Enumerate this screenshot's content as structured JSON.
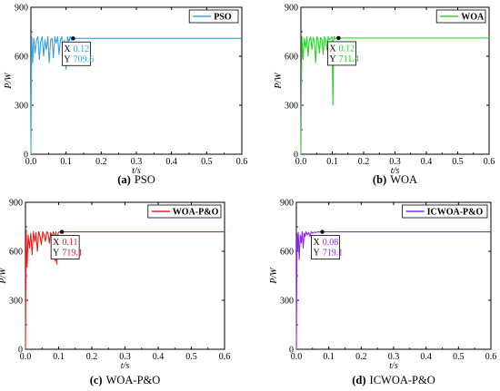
{
  "chart_data": [
    {
      "type": "line",
      "caption_letter": "(a)",
      "caption_text": "PSO",
      "legend": "PSO",
      "color": "#3aa0e0",
      "xlabel": "t/s",
      "ylabel": "P/W",
      "xlim": [
        0,
        0.6
      ],
      "ylim": [
        0,
        900
      ],
      "xticks": [
        "0.0",
        "0.1",
        "0.2",
        "0.3",
        "0.4",
        "0.5",
        "0.6"
      ],
      "yticks": [
        "0",
        "300",
        "600",
        "900"
      ],
      "datatip": {
        "x_label": "X",
        "x_value": "0.12",
        "y_label": "Y",
        "y_value": "709.6",
        "x": 0.12,
        "y": 709.6
      },
      "series": [
        {
          "x": [
            0,
            0.002,
            0.005,
            0.008,
            0.012,
            0.016,
            0.02,
            0.024,
            0.028,
            0.032,
            0.036,
            0.04,
            0.044,
            0.048,
            0.052,
            0.056,
            0.06,
            0.064,
            0.068,
            0.072,
            0.076,
            0.08,
            0.084,
            0.088,
            0.092,
            0.096,
            0.1,
            0.104,
            0.108,
            0.112,
            0.116,
            0.12,
            0.6
          ],
          "y": [
            0,
            720,
            560,
            710,
            620,
            700,
            720,
            580,
            690,
            720,
            600,
            700,
            640,
            720,
            560,
            700,
            710,
            590,
            720,
            680,
            720,
            610,
            700,
            720,
            560,
            700,
            520,
            720,
            690,
            720,
            700,
            709.6,
            709.6
          ]
        }
      ]
    },
    {
      "type": "line",
      "caption_letter": "(b)",
      "caption_text": "WOA",
      "legend": "WOA",
      "color": "#2ed12e",
      "xlabel": "t/s",
      "ylabel": "P/W",
      "xlim": [
        0,
        0.6
      ],
      "ylim": [
        0,
        900
      ],
      "xticks": [
        "0.0",
        "0.1",
        "0.2",
        "0.3",
        "0.4",
        "0.5",
        "0.6"
      ],
      "yticks": [
        "0",
        "300",
        "600",
        "900"
      ],
      "datatip": {
        "x_label": "X",
        "x_value": "0.12",
        "y_label": "Y",
        "y_value": "711.4",
        "x": 0.12,
        "y": 711.4
      },
      "series": [
        {
          "x": [
            0,
            0.003,
            0.007,
            0.011,
            0.015,
            0.019,
            0.023,
            0.027,
            0.031,
            0.035,
            0.039,
            0.043,
            0.047,
            0.051,
            0.055,
            0.059,
            0.063,
            0.067,
            0.071,
            0.075,
            0.079,
            0.083,
            0.087,
            0.091,
            0.095,
            0.099,
            0.102,
            0.104,
            0.106,
            0.11,
            0.115,
            0.12,
            0.6
          ],
          "y": [
            0,
            720,
            580,
            710,
            650,
            720,
            600,
            700,
            720,
            640,
            715,
            690,
            560,
            720,
            700,
            620,
            715,
            700,
            610,
            720,
            700,
            640,
            720,
            700,
            710,
            720,
            300,
            700,
            720,
            705,
            715,
            711.4,
            711.4
          ]
        }
      ]
    },
    {
      "type": "line",
      "caption_letter": "(c)",
      "caption_text": "WOA-P&O",
      "legend": "WOA-P&O",
      "color": "#e02020",
      "xlabel": "t/s",
      "ylabel": "P/W",
      "xlim": [
        0,
        0.6
      ],
      "ylim": [
        0,
        900
      ],
      "xticks": [
        "0.0",
        "0.1",
        "0.2",
        "0.3",
        "0.4",
        "0.5",
        "0.6"
      ],
      "yticks": [
        "0",
        "300",
        "600",
        "900"
      ],
      "datatip": {
        "x_label": "X",
        "x_value": "0.11",
        "y_label": "Y",
        "y_value": "719.1",
        "x": 0.11,
        "y": 719.1
      },
      "series": [
        {
          "x": [
            0,
            0.002,
            0.005,
            0.008,
            0.012,
            0.016,
            0.02,
            0.024,
            0.028,
            0.032,
            0.036,
            0.04,
            0.044,
            0.048,
            0.052,
            0.056,
            0.06,
            0.064,
            0.068,
            0.072,
            0.076,
            0.08,
            0.084,
            0.088,
            0.09,
            0.092,
            0.094,
            0.098,
            0.102,
            0.106,
            0.11,
            0.6
          ],
          "y": [
            0,
            730,
            500,
            700,
            620,
            710,
            580,
            720,
            660,
            715,
            600,
            720,
            690,
            640,
            720,
            700,
            660,
            720,
            710,
            650,
            715,
            690,
            720,
            700,
            540,
            720,
            520,
            710,
            720,
            715,
            719.1,
            719.1
          ]
        }
      ]
    },
    {
      "type": "line",
      "caption_letter": "(d)",
      "caption_text": "ICWOA-P&O",
      "legend": "ICWOA-P&O",
      "color": "#8a2be2",
      "xlabel": "t/s",
      "ylabel": "P/W",
      "xlim": [
        0,
        0.6
      ],
      "ylim": [
        0,
        900
      ],
      "xticks": [
        "0.0",
        "0.1",
        "0.2",
        "0.3",
        "0.4",
        "0.5",
        "0.6"
      ],
      "yticks": [
        "0",
        "300",
        "600",
        "900"
      ],
      "datatip": {
        "x_label": "X",
        "x_value": "0.08",
        "y_label": "Y",
        "y_value": "719.1",
        "x": 0.08,
        "y": 719.1
      },
      "series": [
        {
          "x": [
            0,
            0.002,
            0.004,
            0.006,
            0.009,
            0.012,
            0.015,
            0.018,
            0.021,
            0.024,
            0.027,
            0.03,
            0.034,
            0.038,
            0.042,
            0.046,
            0.05,
            0.055,
            0.06,
            0.065,
            0.07,
            0.075,
            0.08,
            0.6
          ],
          "y": [
            0,
            710,
            600,
            715,
            550,
            700,
            650,
            720,
            620,
            710,
            690,
            720,
            700,
            715,
            690,
            720,
            710,
            718,
            715,
            719,
            718,
            719,
            719.1,
            719.1
          ]
        }
      ]
    }
  ]
}
